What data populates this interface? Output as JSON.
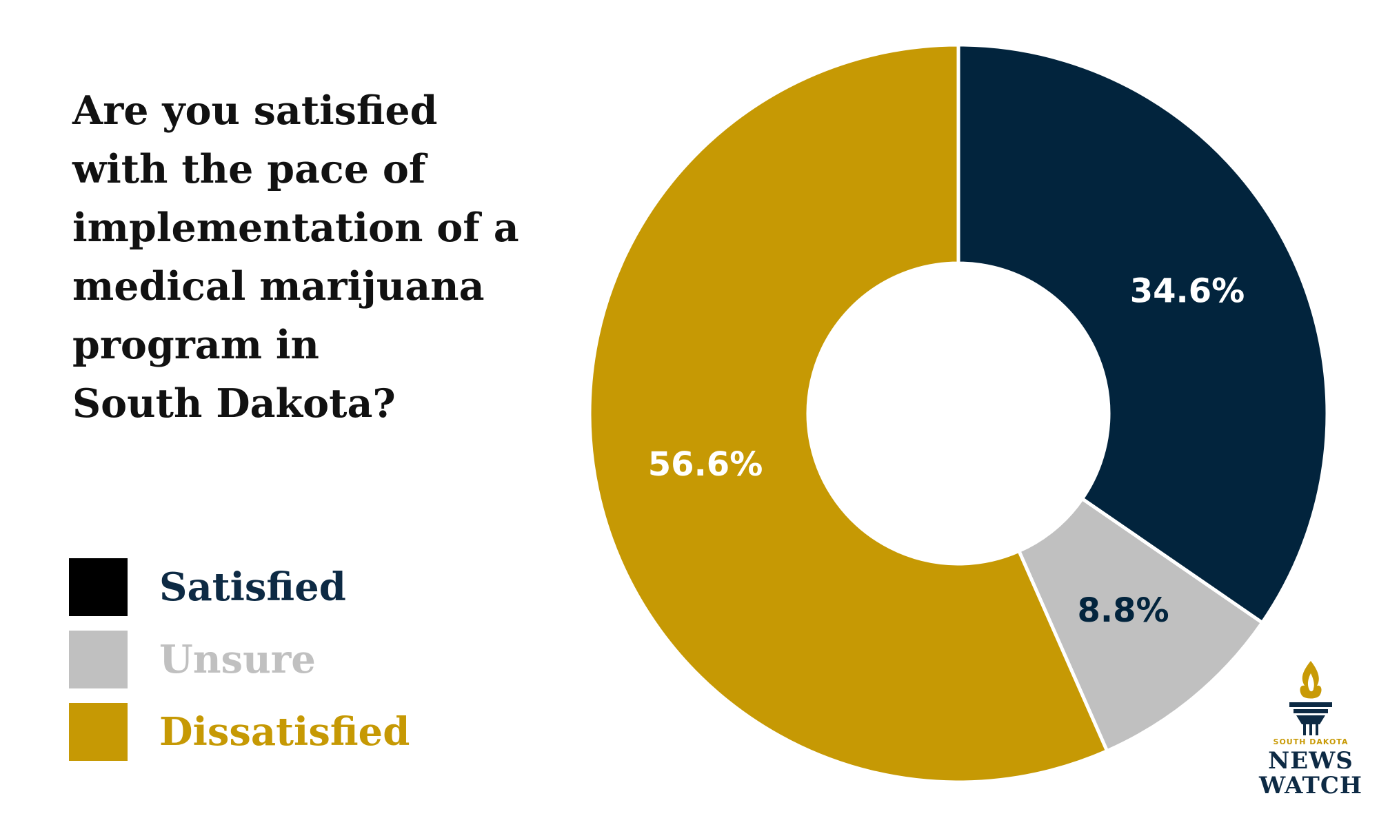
{
  "title_lines": [
    "Are you satisfied",
    "with the pace of",
    "implementation of a",
    "medical marijuana",
    "program in",
    "South Dakota?"
  ],
  "chart_data": {
    "type": "pie",
    "variant": "donut",
    "title": "Are you satisfied with the pace of implementation of a medical marijuana program in South Dakota?",
    "categories": [
      "Satisfied",
      "Unsure",
      "Dissatisfied"
    ],
    "values": [
      34.6,
      8.8,
      56.6
    ],
    "labels": [
      "34.6%",
      "8.8%",
      "56.6%"
    ],
    "colors": [
      "#02243d",
      "#c0c0c0",
      "#c69904"
    ],
    "label_colors": [
      "#ffffff",
      "#02243d",
      "#ffffff"
    ],
    "legend_position": "left"
  },
  "legend": [
    {
      "label": "Satisfied",
      "swatch": "#000000",
      "text_color": "#0d2a44"
    },
    {
      "label": "Unsure",
      "swatch": "#c0c0c0",
      "text_color": "#c0c0c0"
    },
    {
      "label": "Dissatisfied",
      "swatch": "#c69904",
      "text_color": "#c69904"
    }
  ],
  "logo": {
    "small_text": "SOUTH DAKOTA",
    "line1": "NEWS",
    "line2": "WATCH",
    "icon": "torch-icon",
    "colors": {
      "navy": "#0d2a44",
      "gold": "#c89a06"
    }
  }
}
